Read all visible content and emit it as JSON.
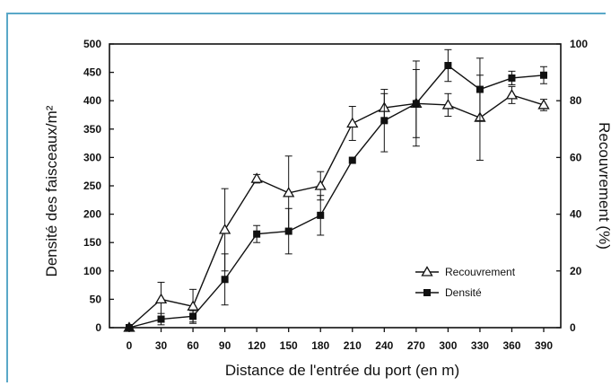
{
  "chart_data": {
    "type": "line",
    "x": [
      0,
      30,
      60,
      90,
      120,
      150,
      180,
      210,
      240,
      270,
      300,
      330,
      360,
      390
    ],
    "xlabel": "Distance de l'entrée du port (en m)",
    "ylabel_left": "Densité des faisceaux/m²",
    "ylabel_right": "Recouvrement (%)",
    "ylim_left": [
      0,
      500
    ],
    "ylim_right": [
      0,
      100
    ],
    "yticks_left": [
      0,
      50,
      100,
      150,
      200,
      250,
      300,
      350,
      400,
      450,
      500
    ],
    "yticks_right": [
      0,
      20,
      40,
      60,
      80,
      100
    ],
    "legend_position": "right",
    "series": [
      {
        "name": "Recouvrement",
        "axis": "right",
        "marker": "open-triangle",
        "values": [
          0,
          10,
          7.5,
          34.5,
          52.5,
          47.5,
          50,
          72,
          77.5,
          79,
          78.5,
          74,
          82,
          78.5
        ],
        "errors": [
          0,
          6,
          6,
          14.5,
          1.5,
          13,
          5,
          6,
          5,
          15,
          4,
          15,
          3,
          2
        ]
      },
      {
        "name": "Densité",
        "axis": "left",
        "marker": "filled-square",
        "values": [
          0,
          15,
          20,
          85,
          165,
          170,
          198,
          295,
          365,
          395,
          462,
          420,
          440,
          445
        ],
        "errors": [
          0,
          10,
          10,
          45,
          15,
          40,
          35,
          0,
          55,
          60,
          28,
          55,
          12,
          15
        ]
      }
    ]
  }
}
